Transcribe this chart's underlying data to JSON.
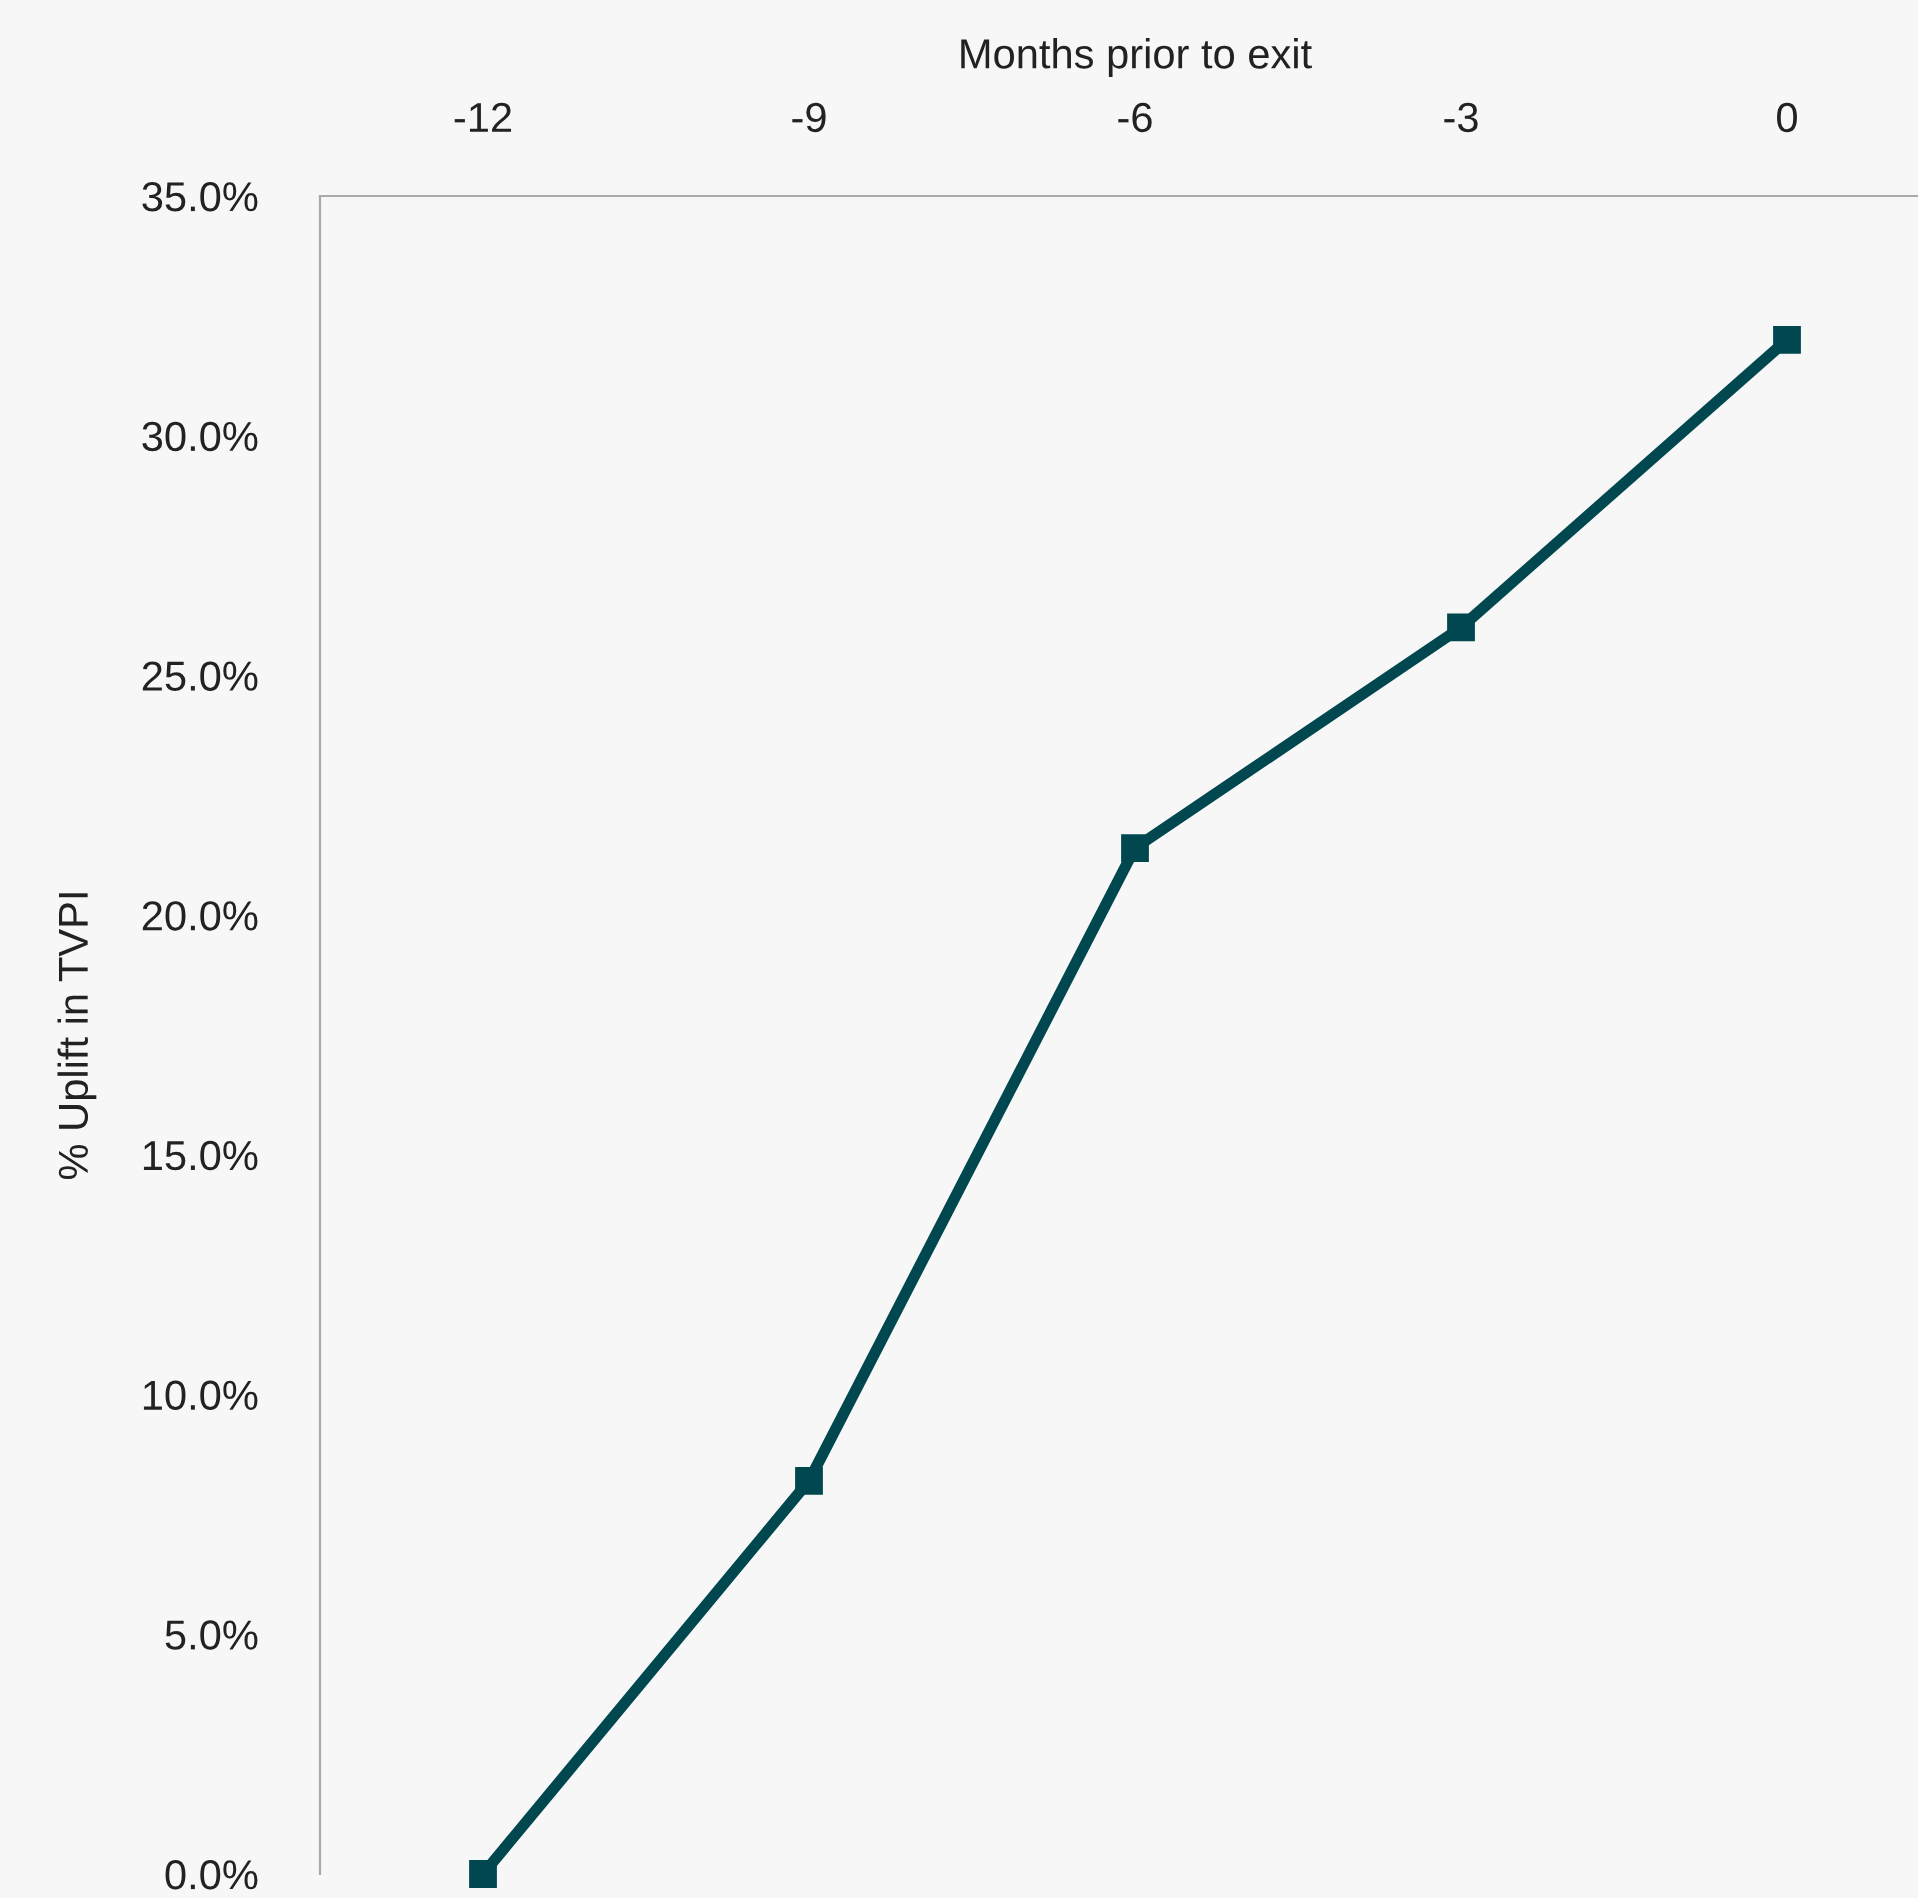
{
  "chart_data": {
    "type": "line",
    "xlabel": "Months prior to exit",
    "ylabel": "% Uplift in TVPI",
    "categories": [
      "-12",
      "-9",
      "-6",
      "-3",
      "0"
    ],
    "series": [
      {
        "color": "#00474f",
        "values": [
          0,
          8.2,
          21.4,
          26,
          32
        ]
      }
    ],
    "ylim": [
      0,
      35
    ],
    "yticks": [
      {
        "value": 0,
        "label": "0.0%"
      },
      {
        "value": 5,
        "label": "5.0%"
      },
      {
        "value": 10,
        "label": "10.0%"
      },
      {
        "value": 15,
        "label": "15.0%"
      },
      {
        "value": 20,
        "label": "20.0%"
      },
      {
        "value": 25,
        "label": "25.0%"
      },
      {
        "value": 30,
        "label": "30.0%"
      },
      {
        "value": 35,
        "label": "35.0%"
      }
    ],
    "marker": "square",
    "line_style": "solid",
    "grid": false,
    "legend": false
  }
}
